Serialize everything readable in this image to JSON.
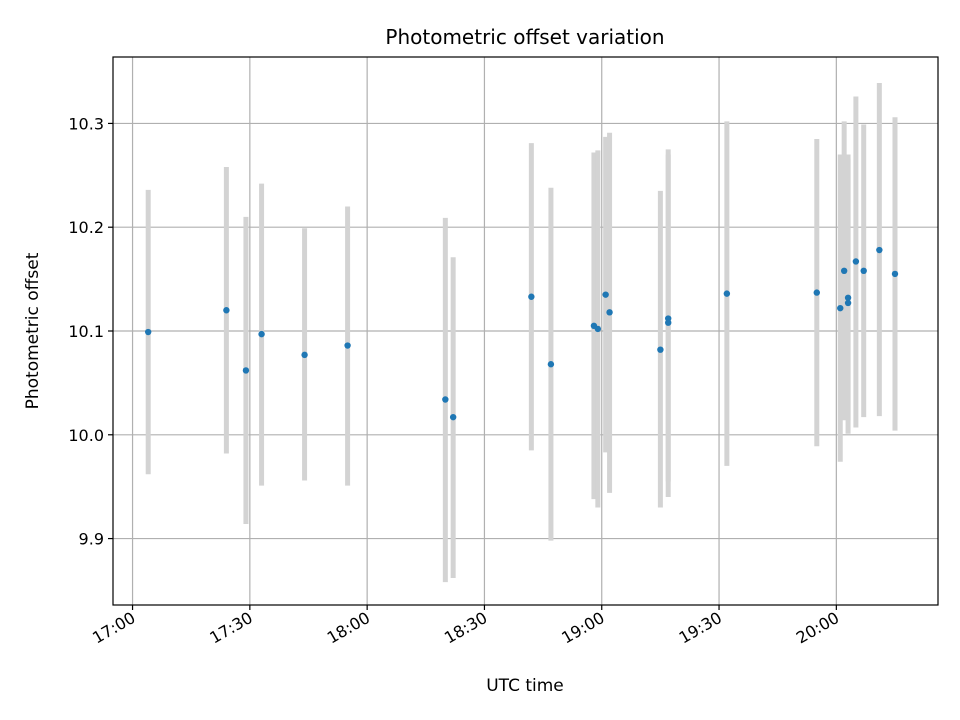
{
  "chart_data": {
    "type": "scatter",
    "title": "Photometric offset variation",
    "xlabel": "UTC time",
    "ylabel": "Photometric offset",
    "grid": true,
    "x_ticks": [
      "17:00",
      "17:30",
      "18:00",
      "18:30",
      "19:00",
      "19:30",
      "20:00"
    ],
    "y_ticks": [
      "9.9",
      "10.0",
      "10.1",
      "10.2",
      "10.3"
    ],
    "xlim": [
      "16:55",
      "20:26"
    ],
    "ylim": [
      9.836,
      10.364
    ],
    "colors": {
      "point": "#1f77b4",
      "errorbar": "#d3d3d3",
      "grid": "#b0b0b0"
    },
    "series": [
      {
        "error_style": "vertical bars",
        "points": [
          {
            "x": "17:04",
            "y": 10.099,
            "ylo": 9.962,
            "yhi": 10.236
          },
          {
            "x": "17:24",
            "y": 10.12,
            "ylo": 9.982,
            "yhi": 10.258
          },
          {
            "x": "17:29",
            "y": 10.062,
            "ylo": 9.914,
            "yhi": 10.21
          },
          {
            "x": "17:33",
            "y": 10.097,
            "ylo": 9.951,
            "yhi": 10.242
          },
          {
            "x": "17:44",
            "y": 10.077,
            "ylo": 9.956,
            "yhi": 10.199
          },
          {
            "x": "17:55",
            "y": 10.086,
            "ylo": 9.951,
            "yhi": 10.22
          },
          {
            "x": "18:20",
            "y": 10.034,
            "ylo": 9.858,
            "yhi": 10.209
          },
          {
            "x": "18:22",
            "y": 10.017,
            "ylo": 9.862,
            "yhi": 10.171
          },
          {
            "x": "18:42",
            "y": 10.133,
            "ylo": 9.985,
            "yhi": 10.281
          },
          {
            "x": "18:47",
            "y": 10.068,
            "ylo": 9.898,
            "yhi": 10.238
          },
          {
            "x": "18:58",
            "y": 10.105,
            "ylo": 9.938,
            "yhi": 10.272
          },
          {
            "x": "18:59",
            "y": 10.102,
            "ylo": 9.93,
            "yhi": 10.274
          },
          {
            "x": "19:01",
            "y": 10.135,
            "ylo": 9.983,
            "yhi": 10.287
          },
          {
            "x": "19:02",
            "y": 10.118,
            "ylo": 9.944,
            "yhi": 10.291
          },
          {
            "x": "19:15",
            "y": 10.082,
            "ylo": 9.93,
            "yhi": 10.235
          },
          {
            "x": "19:17",
            "y": 10.108,
            "ylo": 9.94,
            "yhi": 10.275
          },
          {
            "x": "19:17",
            "y": 10.112,
            "ylo": 9.955,
            "yhi": 10.27
          },
          {
            "x": "19:32",
            "y": 10.136,
            "ylo": 9.97,
            "yhi": 10.302
          },
          {
            "x": "19:55",
            "y": 10.137,
            "ylo": 9.989,
            "yhi": 10.285
          },
          {
            "x": "20:01",
            "y": 10.122,
            "ylo": 9.974,
            "yhi": 10.27
          },
          {
            "x": "20:02",
            "y": 10.158,
            "ylo": 10.014,
            "yhi": 10.302
          },
          {
            "x": "20:03",
            "y": 10.127,
            "ylo": 10.014,
            "yhi": 10.27
          },
          {
            "x": "20:03",
            "y": 10.132,
            "ylo": 10.001,
            "yhi": 10.266
          },
          {
            "x": "20:05",
            "y": 10.167,
            "ylo": 10.007,
            "yhi": 10.326
          },
          {
            "x": "20:07",
            "y": 10.158,
            "ylo": 10.017,
            "yhi": 10.299
          },
          {
            "x": "20:11",
            "y": 10.178,
            "ylo": 10.018,
            "yhi": 10.339
          },
          {
            "x": "20:15",
            "y": 10.155,
            "ylo": 10.004,
            "yhi": 10.306
          }
        ]
      }
    ]
  }
}
